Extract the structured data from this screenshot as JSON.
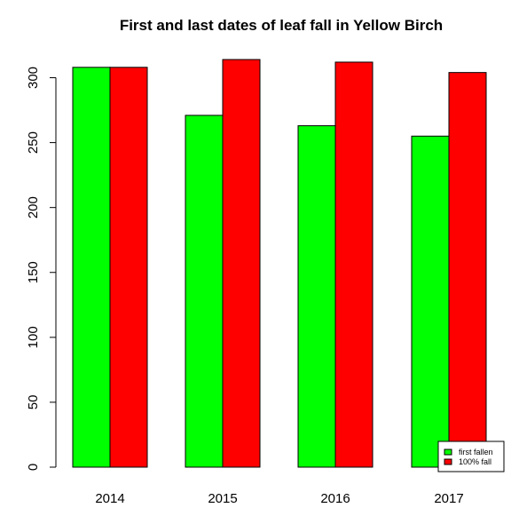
{
  "chart_data": {
    "type": "bar",
    "title": "First and last dates of leaf fall in Yellow Birch",
    "xlabel": "",
    "ylabel": "",
    "categories": [
      "2014",
      "2015",
      "2016",
      "2017"
    ],
    "series": [
      {
        "name": "first fallen",
        "color": "#00ff00",
        "values": [
          308,
          271,
          263,
          255
        ]
      },
      {
        "name": "100% fall",
        "color": "#ff0000",
        "values": [
          308,
          314,
          312,
          304
        ]
      }
    ],
    "yticks": [
      "0",
      "50",
      "100",
      "150",
      "200",
      "250",
      "300"
    ],
    "ylim": [
      0,
      314
    ],
    "grid": false,
    "legend_position": "bottom-right",
    "bar_border_color": "#000000"
  }
}
